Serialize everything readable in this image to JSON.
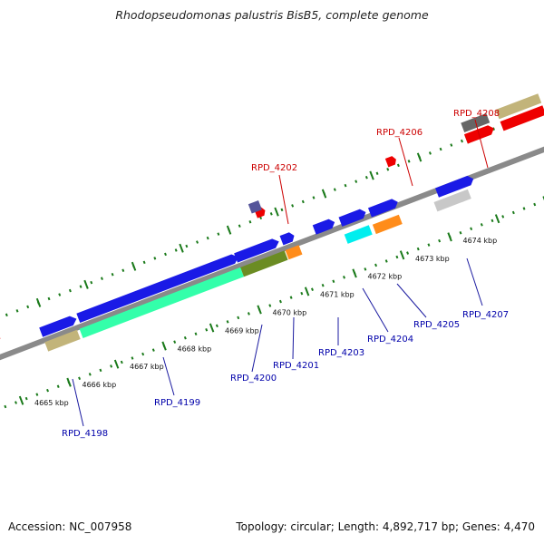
{
  "title": "Rhodopseudomonas palustris BisB5, complete genome",
  "footer": {
    "accession": "Accession: NC_007958",
    "summary": "Topology: circular; Length: 4,892,717 bp; Genes: 4,470"
  },
  "kbp_labels": [
    "4665 kbp",
    "4666 kbp",
    "4667 kbp",
    "4668 kbp",
    "4669 kbp",
    "4670 kbp",
    "4671 kbp",
    "4672 kbp",
    "4673 kbp",
    "4674 kbp"
  ],
  "gene_labels": {
    "RPD_4198": "RPD_4198",
    "RPD_4199": "RPD_4199",
    "RPD_4200": "RPD_4200",
    "RPD_4201": "RPD_4201",
    "RPD_4202": "RPD_4202",
    "RPD_4203": "RPD_4203",
    "RPD_4204": "RPD_4204",
    "RPD_4205": "RPD_4205",
    "RPD_4206": "RPD_4206",
    "RPD_4207": "RPD_4207",
    "RPD_4208": "RPD_4208"
  },
  "colors": {
    "backbone": "#8a8a8a",
    "ticks": "#1a7a1a",
    "cds_blue": "#1a1ae6",
    "cds_red": "#ee0000",
    "aquamarine": "#33ffaa",
    "olive": "#6b8c23",
    "orange": "#ff8c1a",
    "cyan": "#00eeee",
    "khaki": "#c2b47a",
    "gray": "#666666",
    "lightgray": "#c8c8c8",
    "slate": "#55559a"
  }
}
